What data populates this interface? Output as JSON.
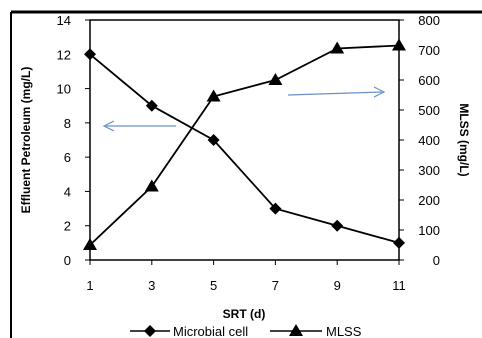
{
  "chart_data": {
    "type": "line",
    "x": [
      1,
      3,
      5,
      7,
      9,
      11
    ],
    "xlabel": "SRT (d)",
    "ylabel_left": "Effluent Petroleum (mg/L)",
    "ylabel_right": "MLSS (mg/L)",
    "xlim": [
      1,
      11
    ],
    "ylim_left": [
      0,
      14
    ],
    "ylim_right": [
      0,
      800
    ],
    "x_ticks": [
      "1",
      "3",
      "5",
      "7",
      "9",
      "11"
    ],
    "y_left_ticks": [
      "0",
      "2",
      "4",
      "6",
      "8",
      "10",
      "12",
      "14"
    ],
    "y_right_ticks": [
      "0",
      "100",
      "200",
      "300",
      "400",
      "500",
      "600",
      "700",
      "800"
    ],
    "grid": false,
    "legend_position": "bottom",
    "series": [
      {
        "name": "Microbial cell",
        "axis": "left",
        "marker": "diamond",
        "color": "#000000",
        "values": [
          12,
          9,
          7,
          3,
          2,
          1
        ]
      },
      {
        "name": "MLSS",
        "axis": "right",
        "marker": "triangle",
        "color": "#000000",
        "values": [
          50,
          245,
          545,
          600,
          705,
          715
        ]
      }
    ],
    "arrow_color": "#6a8fc7"
  }
}
